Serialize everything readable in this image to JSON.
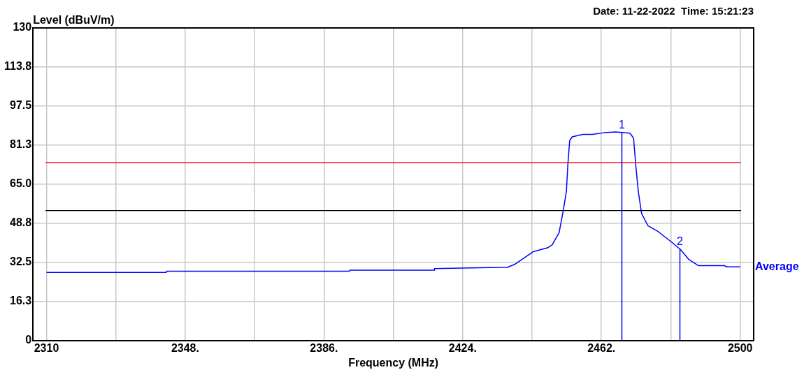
{
  "chart_data": {
    "type": "line",
    "xlabel": "Frequency (MHz)",
    "ylabel": "Level (dBuV/m)",
    "annotations": [
      "Date: 11-22-2022  Time: 15:21:23",
      {
        "text": "1",
        "x": 2467.6,
        "y": 86.7
      },
      {
        "text": "2",
        "x": 2483.5,
        "y": 38.2
      }
    ],
    "xlim": [
      2306.3,
      2503.7
    ],
    "xticks": [
      2310,
      {
        "value": 2329,
        "label": null
      },
      {
        "value": 2348,
        "label": "2348."
      },
      {
        "value": 2367,
        "label": null
      },
      {
        "value": 2386,
        "label": "2386."
      },
      {
        "value": 2405,
        "label": null
      },
      {
        "value": 2424,
        "label": "2424."
      },
      {
        "value": 2443,
        "label": null
      },
      {
        "value": 2462,
        "label": "2462."
      },
      {
        "value": 2481,
        "label": null
      },
      2500
    ],
    "ylim": [
      0,
      130
    ],
    "yticks": [
      0,
      {
        "value": 16.25,
        "label": "16.3"
      },
      32.5,
      {
        "value": 48.75,
        "label": "48.8"
      },
      {
        "value": 65,
        "label": "65.0"
      },
      {
        "value": 81.25,
        "label": "81.3"
      },
      97.5,
      {
        "value": 113.75,
        "label": "113.8"
      },
      130
    ],
    "grid": true,
    "legend": false,
    "marker": "none",
    "line_style": "solid",
    "ref_lines": [
      {
        "axis": "y",
        "value": 74,
        "color": "#ff0000"
      },
      {
        "axis": "y",
        "value": 54,
        "color": "#000000"
      }
    ],
    "series": [
      {
        "name": "Average",
        "color": "#0000ff",
        "x": [
          2310,
          2342.8,
          2342.9,
          2385.4,
          2393,
          2393.1,
          2416.2,
          2416.3,
          2431.3,
          2436.2,
          2438.2,
          2443.3,
          2447.2,
          2448.5,
          2450.4,
          2451.4,
          2452.4,
          2452.8,
          2453.3,
          2454,
          2456.9,
          2459.5,
          2462.7,
          2465.9,
          2469.8,
          2470.8,
          2471.4,
          2472.1,
          2473,
          2474.7,
          2477.6,
          2481.4,
          2483.7,
          2486,
          2488.6,
          2495.7,
          2496.3,
          2500
        ],
        "values": [
          28.3,
          28.3,
          28.8,
          28.8,
          28.8,
          29.2,
          29.2,
          29.9,
          30.3,
          30.4,
          31.6,
          36.9,
          38.5,
          39.7,
          44.8,
          52.8,
          61.9,
          73,
          83.1,
          84.7,
          85.7,
          85.7,
          86.4,
          86.7,
          86.2,
          84.2,
          73,
          61.9,
          52.8,
          47.8,
          45.2,
          40.7,
          37.7,
          33.6,
          31.1,
          31.1,
          30.6,
          30.6
        ]
      }
    ]
  }
}
